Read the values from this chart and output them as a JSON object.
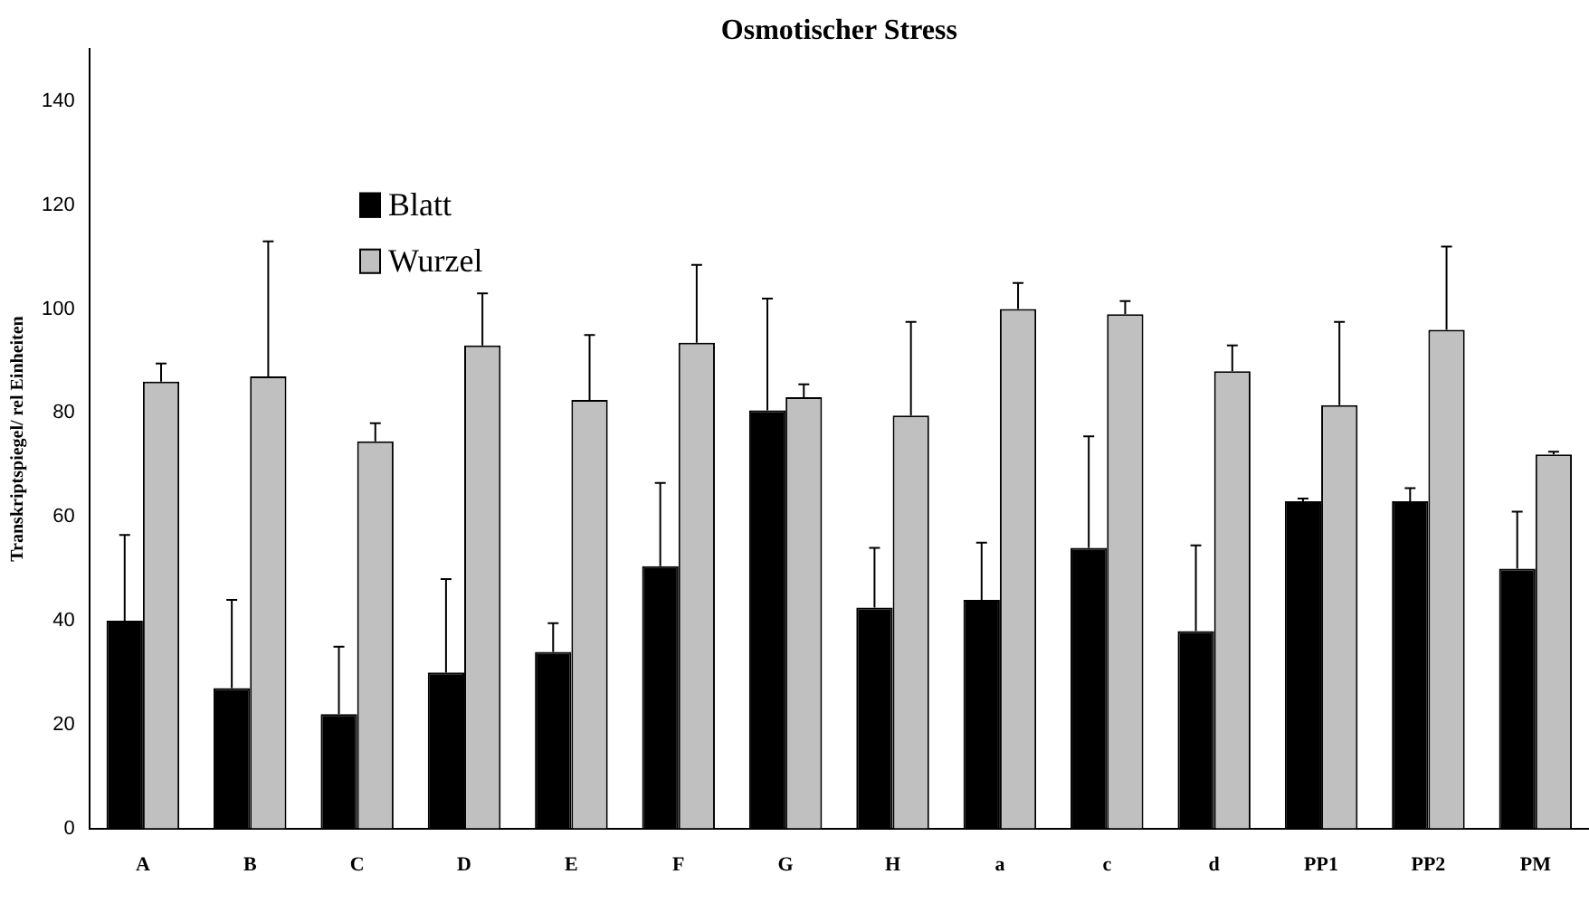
{
  "chart_data": {
    "type": "bar",
    "title": "Osmotischer Stress",
    "ylabel": "Transkriptspiegel/ rel Einheiten",
    "categories": [
      "A",
      "B",
      "C",
      "D",
      "E",
      "F",
      "G",
      "H",
      "a",
      "c",
      "d",
      "PP1",
      "PP2",
      "PM"
    ],
    "series": [
      {
        "name": "Blatt",
        "color": "#000000",
        "values": [
          40,
          27,
          22,
          30,
          34,
          50.5,
          80.5,
          42.5,
          44,
          54,
          38,
          63,
          63,
          50
        ],
        "errors": [
          [
            40,
            56.5
          ],
          [
            27,
            44
          ],
          [
            22,
            35
          ],
          [
            30,
            48
          ],
          [
            34,
            39.5
          ],
          [
            50.5,
            66.5
          ],
          [
            80.5,
            102
          ],
          [
            42.5,
            54
          ],
          [
            44,
            55
          ],
          [
            54,
            75.5
          ],
          [
            38,
            54.5
          ],
          [
            63,
            63.5
          ],
          [
            63,
            65.5
          ],
          [
            50,
            61
          ]
        ]
      },
      {
        "name": "Wurzel",
        "color": "#c0c0c0",
        "values": [
          86,
          87,
          74.5,
          93,
          82.5,
          93.5,
          83,
          79.5,
          100,
          99,
          88,
          81.5,
          96,
          72
        ],
        "errors": [
          [
            86,
            89.5
          ],
          [
            87,
            113
          ],
          [
            74.5,
            78
          ],
          [
            93,
            103
          ],
          [
            82.5,
            95
          ],
          [
            93.5,
            108.5
          ],
          [
            83,
            85.5
          ],
          [
            79.5,
            97.5
          ],
          [
            100,
            105
          ],
          [
            99,
            101.5
          ],
          [
            88,
            93
          ],
          [
            81.5,
            97.5
          ],
          [
            96,
            112
          ],
          [
            72,
            72.5
          ]
        ]
      }
    ],
    "ylim": [
      0,
      150
    ],
    "yticks": [
      0,
      20,
      40,
      60,
      80,
      100,
      120,
      140
    ],
    "grid": false,
    "legend": "top left"
  }
}
